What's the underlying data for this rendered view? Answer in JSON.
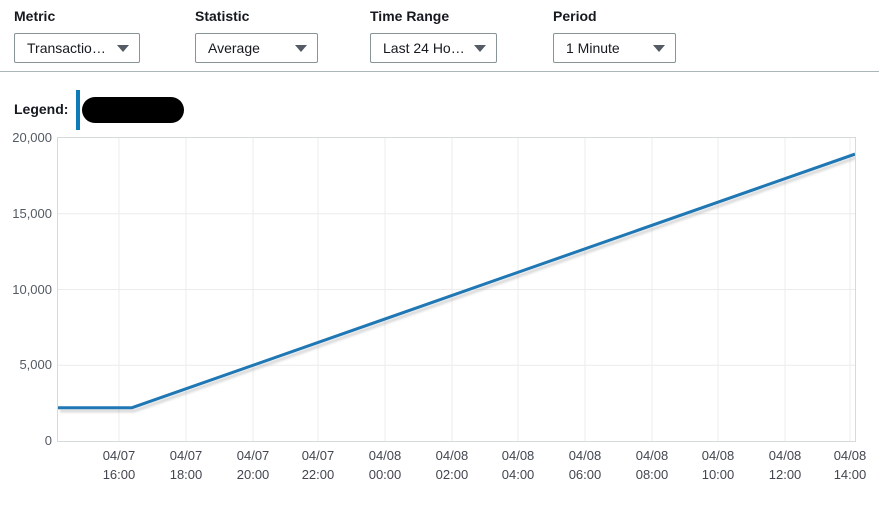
{
  "controls": [
    {
      "label": "Metric",
      "value": "Transactio…"
    },
    {
      "label": "Statistic",
      "value": "Average"
    },
    {
      "label": "Time Range",
      "value": "Last 24 Ho…"
    },
    {
      "label": "Period",
      "value": "1 Minute"
    }
  ],
  "legend": {
    "label": "Legend:",
    "series_redacted": true,
    "series_color": "#0d7bb8"
  },
  "colors": {
    "line": "#1f77b4",
    "line_shadow": "#8a8a8a",
    "grid": "#ececec",
    "plot_border": "#d5dbdb",
    "axis_text": "#545b64",
    "separator": "#aab7b8",
    "text": "#16191f"
  },
  "chart_data": {
    "type": "line",
    "title": "",
    "xlabel": "",
    "ylabel": "",
    "grid": true,
    "legend_position": "top-left-outside",
    "ylim": [
      0,
      20000
    ],
    "y_ticks": [
      {
        "value": 0,
        "label": "0"
      },
      {
        "value": 5000,
        "label": "5,000"
      },
      {
        "value": 10000,
        "label": "10,000"
      },
      {
        "value": 15000,
        "label": "15,000"
      },
      {
        "value": 20000,
        "label": "20,000"
      }
    ],
    "x_ticks": [
      {
        "date": "04/07",
        "time": "16:00",
        "fraction": 0.0765
      },
      {
        "date": "04/07",
        "time": "18:00",
        "fraction": 0.1606
      },
      {
        "date": "04/07",
        "time": "20:00",
        "fraction": 0.2447
      },
      {
        "date": "04/07",
        "time": "22:00",
        "fraction": 0.3262
      },
      {
        "date": "04/08",
        "time": "00:00",
        "fraction": 0.4103
      },
      {
        "date": "04/08",
        "time": "02:00",
        "fraction": 0.4943
      },
      {
        "date": "04/08",
        "time": "04:00",
        "fraction": 0.5772
      },
      {
        "date": "04/08",
        "time": "06:00",
        "fraction": 0.6612
      },
      {
        "date": "04/08",
        "time": "08:00",
        "fraction": 0.7453
      },
      {
        "date": "04/08",
        "time": "10:00",
        "fraction": 0.8281
      },
      {
        "date": "04/08",
        "time": "12:00",
        "fraction": 0.9122
      },
      {
        "date": "04/08",
        "time": "14:00",
        "fraction": 0.9937
      }
    ],
    "series": [
      {
        "name": "redacted-series",
        "color": "#1f77b4",
        "points": [
          {
            "x": 0.0,
            "y": 2200
          },
          {
            "x": 0.0928,
            "y": 2200
          },
          {
            "x": 1.0,
            "y": 18940
          }
        ],
        "values_at_x_ticks": [
          2200,
          3400,
          4950,
          6500,
          8050,
          9600,
          11100,
          12650,
          14200,
          15750,
          17300,
          18850
        ]
      }
    ]
  }
}
